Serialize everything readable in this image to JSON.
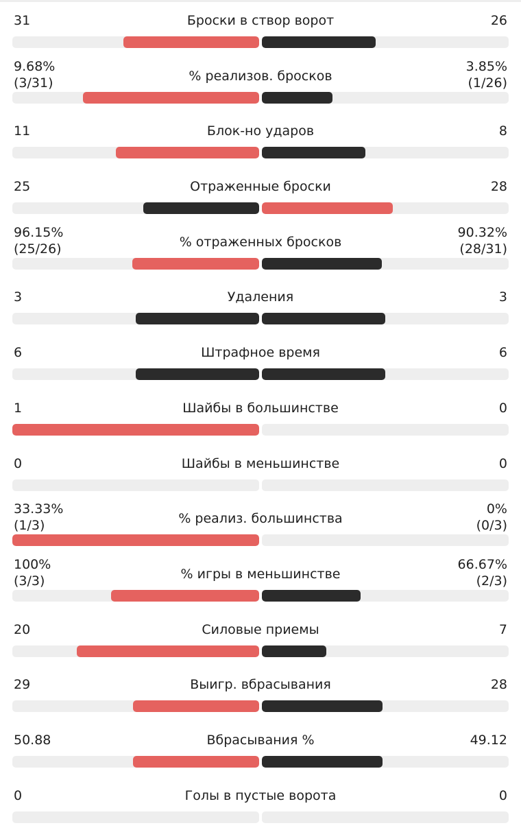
{
  "colors": {
    "leader": "#e5625f",
    "trailer": "#2b2b2b",
    "track": "#eeeeee"
  },
  "stats": [
    {
      "label": "Броски в створ ворот",
      "left": [
        "31"
      ],
      "right": [
        "26"
      ],
      "left_fill": 0.55,
      "right_fill": 0.46,
      "left_color": "leader",
      "right_color": "trailer"
    },
    {
      "label": "% реализов. бросков",
      "left": [
        "9.68%",
        "(3/31)"
      ],
      "right": [
        "3.85%",
        "(1/26)"
      ],
      "left_fill": 0.715,
      "right_fill": 0.285,
      "left_color": "leader",
      "right_color": "trailer"
    },
    {
      "label": "Блок-но ударов",
      "left": [
        "11"
      ],
      "right": [
        "8"
      ],
      "left_fill": 0.58,
      "right_fill": 0.42,
      "left_color": "leader",
      "right_color": "trailer"
    },
    {
      "label": "Отраженные броски",
      "left": [
        "25"
      ],
      "right": [
        "28"
      ],
      "left_fill": 0.47,
      "right_fill": 0.53,
      "left_color": "trailer",
      "right_color": "leader"
    },
    {
      "label": "% отраженных бросков",
      "left": [
        "96.15%",
        "(25/26)"
      ],
      "right": [
        "90.32%",
        "(28/31)"
      ],
      "left_fill": 0.515,
      "right_fill": 0.485,
      "left_color": "leader",
      "right_color": "trailer"
    },
    {
      "label": "Удаления",
      "left": [
        "3"
      ],
      "right": [
        "3"
      ],
      "left_fill": 0.5,
      "right_fill": 0.5,
      "left_color": "trailer",
      "right_color": "trailer"
    },
    {
      "label": "Штрафное время",
      "left": [
        "6"
      ],
      "right": [
        "6"
      ],
      "left_fill": 0.5,
      "right_fill": 0.5,
      "left_color": "trailer",
      "right_color": "trailer"
    },
    {
      "label": "Шайбы в большинстве",
      "left": [
        "1"
      ],
      "right": [
        "0"
      ],
      "left_fill": 1.0,
      "right_fill": 0.0,
      "left_color": "leader",
      "right_color": "trailer"
    },
    {
      "label": "Шайбы в меньшинстве",
      "left": [
        "0"
      ],
      "right": [
        "0"
      ],
      "left_fill": 0.0,
      "right_fill": 0.0,
      "left_color": "trailer",
      "right_color": "trailer"
    },
    {
      "label": "% реализ. большинства",
      "left": [
        "33.33%",
        "(1/3)"
      ],
      "right": [
        "0%",
        "(0/3)"
      ],
      "left_fill": 1.0,
      "right_fill": 0.0,
      "left_color": "leader",
      "right_color": "trailer"
    },
    {
      "label": "% игры в меньшинстве",
      "left": [
        "100%",
        "(3/3)"
      ],
      "right": [
        "66.67%",
        "(2/3)"
      ],
      "left_fill": 0.6,
      "right_fill": 0.4,
      "left_color": "leader",
      "right_color": "trailer"
    },
    {
      "label": "Силовые приемы",
      "left": [
        "20"
      ],
      "right": [
        "7"
      ],
      "left_fill": 0.74,
      "right_fill": 0.26,
      "left_color": "leader",
      "right_color": "trailer"
    },
    {
      "label": "Выигр. вбрасывания",
      "left": [
        "29"
      ],
      "right": [
        "28"
      ],
      "left_fill": 0.51,
      "right_fill": 0.49,
      "left_color": "leader",
      "right_color": "trailer"
    },
    {
      "label": "Вбрасывания %",
      "left": [
        "50.88"
      ],
      "right": [
        "49.12"
      ],
      "left_fill": 0.51,
      "right_fill": 0.49,
      "left_color": "leader",
      "right_color": "trailer"
    },
    {
      "label": "Голы в пустые ворота",
      "left": [
        "0"
      ],
      "right": [
        "0"
      ],
      "left_fill": 0.0,
      "right_fill": 0.0,
      "left_color": "trailer",
      "right_color": "trailer"
    }
  ]
}
